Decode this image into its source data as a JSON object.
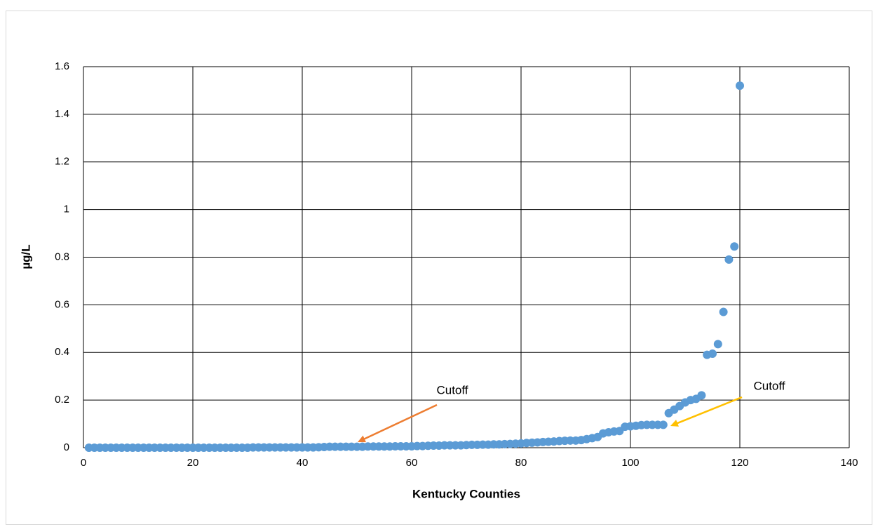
{
  "chart_data": {
    "type": "scatter",
    "x_label": "Kentucky Counties",
    "y_label": "µg/L",
    "xlim": [
      0,
      140
    ],
    "xticks": [
      0,
      20,
      40,
      60,
      80,
      100,
      120,
      140
    ],
    "ylim": [
      0,
      1.6
    ],
    "yticks": [
      0,
      0.2,
      0.4,
      0.6,
      0.8,
      1,
      1.2,
      1.4,
      1.6
    ],
    "grid": true,
    "color": "#5b9bd5",
    "x": [
      1,
      2,
      3,
      4,
      5,
      6,
      7,
      8,
      9,
      10,
      11,
      12,
      13,
      14,
      15,
      16,
      17,
      18,
      19,
      20,
      21,
      22,
      23,
      24,
      25,
      26,
      27,
      28,
      29,
      30,
      31,
      32,
      33,
      34,
      35,
      36,
      37,
      38,
      39,
      40,
      41,
      42,
      43,
      44,
      45,
      46,
      47,
      48,
      49,
      50,
      51,
      52,
      53,
      54,
      55,
      56,
      57,
      58,
      59,
      60,
      61,
      62,
      63,
      64,
      65,
      66,
      67,
      68,
      69,
      70,
      71,
      72,
      73,
      74,
      75,
      76,
      77,
      78,
      79,
      80,
      81,
      82,
      83,
      84,
      85,
      86,
      87,
      88,
      89,
      90,
      91,
      92,
      93,
      94,
      95,
      96,
      97,
      98,
      99,
      100,
      101,
      102,
      103,
      104,
      105,
      106,
      107,
      108,
      109,
      110,
      111,
      112,
      113,
      114,
      115,
      116,
      117,
      118,
      119,
      120
    ],
    "values": [
      0,
      0,
      0,
      0,
      0,
      0,
      0,
      0,
      0,
      0,
      0,
      0,
      0,
      0,
      0,
      0,
      0,
      0,
      0,
      0,
      0,
      0,
      0,
      0,
      0,
      0,
      0,
      0,
      0,
      0,
      0.001,
      0.001,
      0.001,
      0.001,
      0.001,
      0.001,
      0.001,
      0.001,
      0.001,
      0.001,
      0.001,
      0.001,
      0.002,
      0.003,
      0.004,
      0.004,
      0.004,
      0.004,
      0.004,
      0.004,
      0.004,
      0.005,
      0.005,
      0.005,
      0.005,
      0.005,
      0.006,
      0.006,
      0.006,
      0.006,
      0.007,
      0.007,
      0.008,
      0.009,
      0.009,
      0.01,
      0.01,
      0.01,
      0.01,
      0.011,
      0.012,
      0.012,
      0.013,
      0.013,
      0.014,
      0.014,
      0.015,
      0.016,
      0.017,
      0.018,
      0.02,
      0.021,
      0.022,
      0.024,
      0.025,
      0.026,
      0.028,
      0.029,
      0.03,
      0.03,
      0.032,
      0.036,
      0.04,
      0.045,
      0.06,
      0.065,
      0.068,
      0.07,
      0.088,
      0.09,
      0.092,
      0.095,
      0.096,
      0.096,
      0.096,
      0.096,
      0.145,
      0.16,
      0.175,
      0.19,
      0.2,
      0.205,
      0.22,
      0.39,
      0.395,
      0.435,
      0.57,
      0.79,
      0.845,
      1.52
    ],
    "annotations": [
      {
        "text": "Cutoff",
        "color": "#ed7d31"
      },
      {
        "text": "Cutoff",
        "color": "#ffc000"
      }
    ]
  }
}
